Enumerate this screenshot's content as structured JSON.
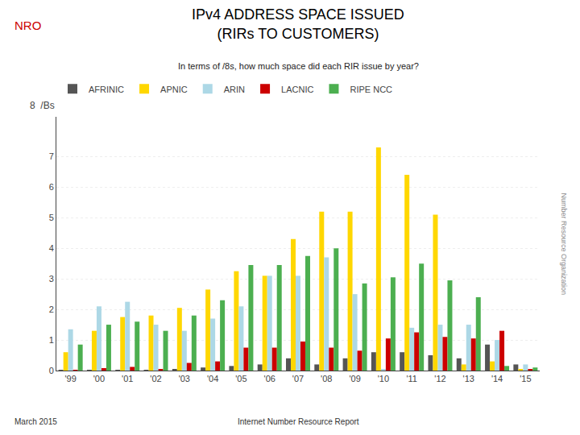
{
  "chart_data": {
    "type": "bar",
    "title": "IPv4 ADDRESS SPACE ISSUED\n(RIRs TO CUSTOMERS)",
    "subtitle": "In terms of /8s, how much space did each RIR issue by year?",
    "ylabel": "8  /Bs",
    "annotations": [
      "March 2015",
      "Internet Number Resource Report",
      "NRO",
      "Number Resource Organization"
    ],
    "categories": [
      "'99",
      "'00",
      "'01",
      "'02",
      "'03",
      "'04",
      "'05",
      "'06",
      "'07",
      "'08",
      "'09",
      "'10",
      "'11",
      "'12",
      "'13",
      "'14",
      "'15"
    ],
    "series": [
      {
        "name": "AFRINIC",
        "color": "#555555",
        "values": [
          0.02,
          0.02,
          0.02,
          0.02,
          0.05,
          0.1,
          0.15,
          0.2,
          0.4,
          0.2,
          0.4,
          0.6,
          0.6,
          0.5,
          0.4,
          0.85,
          0.2
        ]
      },
      {
        "name": "APNIC",
        "color": "#FFD700",
        "values": [
          0.6,
          1.3,
          1.75,
          1.8,
          2.05,
          2.65,
          3.25,
          3.1,
          4.3,
          5.2,
          5.2,
          7.3,
          6.4,
          5.1,
          0.2,
          0.3,
          0.05
        ]
      },
      {
        "name": "ARIN",
        "color": "#ADD8E6",
        "values": [
          1.35,
          2.1,
          2.25,
          1.5,
          1.3,
          1.7,
          2.1,
          3.1,
          3.1,
          3.7,
          2.5,
          0.05,
          1.4,
          1.5,
          1.5,
          1.0,
          0.2
        ]
      },
      {
        "name": "LACNIC",
        "color": "#CC0000",
        "values": [
          0.02,
          0.08,
          0.12,
          0.05,
          0.25,
          0.3,
          0.75,
          0.75,
          0.95,
          0.75,
          0.65,
          1.05,
          1.25,
          1.1,
          1.05,
          1.3,
          0.05
        ]
      },
      {
        "name": "RIPE NCC",
        "color": "#4CAF50",
        "values": [
          0.85,
          1.5,
          1.6,
          1.3,
          1.8,
          2.3,
          3.45,
          3.45,
          3.75,
          4.0,
          2.85,
          3.05,
          3.5,
          2.95,
          2.4,
          0.15,
          0.1
        ]
      }
    ],
    "ylim": [
      0,
      8.3
    ],
    "yticks": [
      0,
      1,
      2,
      3,
      4,
      5,
      6,
      7
    ],
    "grid": true,
    "legend": "upper left"
  }
}
